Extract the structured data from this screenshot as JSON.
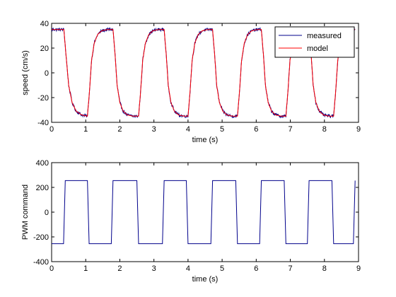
{
  "chart_data": [
    {
      "type": "line",
      "xlabel": "time (s)",
      "ylabel": "speed (cm/s)",
      "xlim": [
        0,
        9
      ],
      "ylim": [
        -40,
        40
      ],
      "xticks": [
        0,
        1,
        2,
        3,
        4,
        5,
        6,
        7,
        8,
        9
      ],
      "yticks": [
        -40,
        -20,
        0,
        20,
        40
      ],
      "grid": false,
      "legend_position": "top-right",
      "series": [
        {
          "name": "measured",
          "color": "#00008b",
          "noise": 1.2,
          "x": [
            0,
            0.36,
            0.42,
            0.5,
            0.6,
            0.72,
            0.88,
            1.05,
            1.11,
            1.17,
            1.25,
            1.35,
            1.47,
            1.63,
            1.8,
            1.86,
            1.92,
            2.0,
            2.1,
            2.22,
            2.38,
            2.55,
            2.61,
            2.67,
            2.75,
            2.85,
            2.97,
            3.13,
            3.3,
            3.36,
            3.42,
            3.5,
            3.6,
            3.72,
            3.88,
            4.0,
            4.06,
            4.12,
            4.2,
            4.3,
            4.42,
            4.58,
            4.72,
            4.78,
            4.84,
            4.92,
            5.02,
            5.14,
            5.3,
            5.45,
            5.51,
            5.57,
            5.65,
            5.75,
            5.87,
            6.03,
            6.15,
            6.21,
            6.27,
            6.35,
            6.45,
            6.57,
            6.73,
            6.87,
            6.93,
            6.99,
            7.07,
            7.17,
            7.29,
            7.45,
            7.55,
            7.61,
            7.67,
            7.75,
            7.85,
            7.97,
            8.13,
            8.27,
            8.33,
            8.39,
            8.47,
            8.57,
            8.69,
            8.85,
            8.9
          ],
          "y": [
            35,
            35,
            15,
            -10,
            -24,
            -31,
            -34,
            -35,
            -15,
            10,
            24,
            31,
            34,
            35,
            35,
            15,
            -10,
            -24,
            -31,
            -34,
            -35,
            -35,
            -15,
            10,
            24,
            31,
            34,
            35,
            35,
            15,
            -10,
            -24,
            -31,
            -34,
            -35,
            -35,
            -15,
            10,
            24,
            31,
            34,
            35,
            35,
            15,
            -10,
            -24,
            -31,
            -34,
            -35,
            -35,
            -15,
            10,
            24,
            31,
            34,
            35,
            35,
            15,
            -10,
            -24,
            -31,
            -34,
            -35,
            -35,
            -15,
            10,
            24,
            31,
            34,
            35,
            35,
            15,
            -10,
            -24,
            -31,
            -34,
            -35,
            -35,
            -15,
            10,
            24,
            31,
            34,
            35,
            35
          ]
        },
        {
          "name": "model",
          "color": "#ff0000",
          "noise": 0,
          "x": [
            0,
            0.36,
            0.42,
            0.5,
            0.6,
            0.72,
            0.88,
            1.05,
            1.11,
            1.17,
            1.25,
            1.35,
            1.47,
            1.63,
            1.8,
            1.86,
            1.92,
            2.0,
            2.1,
            2.22,
            2.38,
            2.55,
            2.61,
            2.67,
            2.75,
            2.85,
            2.97,
            3.13,
            3.3,
            3.36,
            3.42,
            3.5,
            3.6,
            3.72,
            3.88,
            4.0,
            4.06,
            4.12,
            4.2,
            4.3,
            4.42,
            4.58,
            4.72,
            4.78,
            4.84,
            4.92,
            5.02,
            5.14,
            5.3,
            5.45,
            5.51,
            5.57,
            5.65,
            5.75,
            5.87,
            6.03,
            6.15,
            6.21,
            6.27,
            6.35,
            6.45,
            6.57,
            6.73,
            6.87,
            6.93,
            6.99,
            7.07,
            7.17,
            7.29,
            7.45,
            7.55,
            7.61,
            7.67,
            7.75,
            7.85,
            7.97,
            8.13,
            8.27,
            8.33,
            8.39,
            8.47,
            8.57,
            8.69,
            8.85,
            8.9
          ],
          "y": [
            35,
            35,
            15,
            -10,
            -24,
            -31,
            -34,
            -35,
            -15,
            10,
            24,
            31,
            34,
            35,
            35,
            15,
            -10,
            -24,
            -31,
            -34,
            -35,
            -35,
            -15,
            10,
            24,
            31,
            34,
            35,
            35,
            15,
            -10,
            -24,
            -31,
            -34,
            -35,
            -35,
            -15,
            10,
            24,
            31,
            34,
            35,
            35,
            15,
            -10,
            -24,
            -31,
            -34,
            -35,
            -35,
            -15,
            10,
            24,
            31,
            34,
            35,
            35,
            15,
            -10,
            -24,
            -31,
            -34,
            -35,
            -35,
            -15,
            10,
            24,
            31,
            34,
            35,
            35,
            15,
            -10,
            -24,
            -31,
            -34,
            -35,
            -35,
            -15,
            10,
            24,
            31,
            34,
            35,
            35
          ]
        }
      ]
    },
    {
      "type": "line",
      "xlabel": "time (s)",
      "ylabel": "PWM command",
      "xlim": [
        0,
        9
      ],
      "ylim": [
        -400,
        400
      ],
      "xticks": [
        0,
        1,
        2,
        3,
        4,
        5,
        6,
        7,
        8,
        9
      ],
      "yticks": [
        -400,
        -200,
        0,
        200,
        400
      ],
      "grid": false,
      "series": [
        {
          "color": "#00008b",
          "x": [
            0,
            0.35,
            0.4,
            1.05,
            1.1,
            1.75,
            1.8,
            2.5,
            2.55,
            3.25,
            3.3,
            3.95,
            4.0,
            4.67,
            4.72,
            5.4,
            5.45,
            6.1,
            6.15,
            6.82,
            6.87,
            7.5,
            7.55,
            8.22,
            8.27,
            8.85,
            8.9
          ],
          "y": [
            -255,
            -255,
            255,
            255,
            -255,
            -255,
            255,
            255,
            -255,
            -255,
            255,
            255,
            -255,
            -255,
            255,
            255,
            -255,
            -255,
            255,
            255,
            -255,
            -255,
            255,
            255,
            -255,
            -255,
            255
          ]
        }
      ]
    }
  ]
}
